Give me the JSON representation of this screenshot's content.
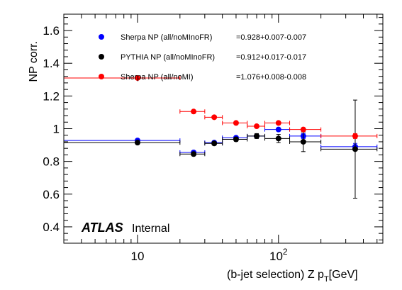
{
  "chart_data": {
    "type": "scatter",
    "xlabel": "(b-jet selection) Z p",
    "xlabel_sub": "T",
    "xlabel_unit": "[GeV]",
    "ylabel": "NP corr.",
    "xscale": "log",
    "xlim": [
      3,
      550
    ],
    "ylim": [
      0.3,
      1.7
    ],
    "yticks": [
      "0.4",
      "0.6",
      "0.8",
      "1",
      "1.2",
      "1.4",
      "1.6"
    ],
    "xtick_labels": [
      {
        "value": 10,
        "base": "10",
        "exp": ""
      },
      {
        "value": 100,
        "base": "10",
        "exp": "2"
      }
    ],
    "grid": false,
    "legend_position": "top-left",
    "series": [
      {
        "name": "Sherpa NP (all/noMInoFR)",
        "value_label": "=0.928+0.007-0.007",
        "color": "#0000ff",
        "points": [
          {
            "x": 10,
            "xlo": 3,
            "xhi": 20,
            "y": 0.928,
            "err": 0.007
          },
          {
            "x": 25,
            "xlo": 20,
            "xhi": 30,
            "y": 0.855,
            "err": 0.008
          },
          {
            "x": 35,
            "xlo": 30,
            "xhi": 40,
            "y": 0.915,
            "err": 0.008
          },
          {
            "x": 50,
            "xlo": 40,
            "xhi": 60,
            "y": 0.945,
            "err": 0.008
          },
          {
            "x": 70,
            "xlo": 60,
            "xhi": 80,
            "y": 0.955,
            "err": 0.01
          },
          {
            "x": 100,
            "xlo": 80,
            "xhi": 120,
            "y": 0.995,
            "err": 0.01
          },
          {
            "x": 150,
            "xlo": 120,
            "xhi": 200,
            "y": 0.955,
            "err": 0.015
          },
          {
            "x": 350,
            "xlo": 200,
            "xhi": 500,
            "y": 0.89,
            "err": 0.02
          }
        ]
      },
      {
        "name": "PYTHIA NP (all/noMInoFR)",
        "value_label": "=0.912+0.017-0.017",
        "color": "#000000",
        "points": [
          {
            "x": 10,
            "xlo": 3,
            "xhi": 20,
            "y": 0.915,
            "err": 0.01
          },
          {
            "x": 25,
            "xlo": 20,
            "xhi": 30,
            "y": 0.845,
            "err": 0.01
          },
          {
            "x": 35,
            "xlo": 30,
            "xhi": 40,
            "y": 0.91,
            "err": 0.01
          },
          {
            "x": 50,
            "xlo": 40,
            "xhi": 60,
            "y": 0.935,
            "err": 0.012
          },
          {
            "x": 70,
            "xlo": 60,
            "xhi": 80,
            "y": 0.955,
            "err": 0.015
          },
          {
            "x": 100,
            "xlo": 80,
            "xhi": 120,
            "y": 0.94,
            "err": 0.025
          },
          {
            "x": 150,
            "xlo": 120,
            "xhi": 200,
            "y": 0.92,
            "err": 0.06
          },
          {
            "x": 350,
            "xlo": 200,
            "xhi": 500,
            "y": 0.875,
            "err": 0.3
          }
        ]
      },
      {
        "name": "Sherpa NP (all/noMI)",
        "value_label": "=1.076+0.008-0.008",
        "color": "#ff0000",
        "points": [
          {
            "x": 10,
            "xlo": 3,
            "xhi": 20,
            "y": 1.31,
            "err": 0.005
          },
          {
            "x": 25,
            "xlo": 20,
            "xhi": 30,
            "y": 1.105,
            "err": 0.006
          },
          {
            "x": 35,
            "xlo": 30,
            "xhi": 40,
            "y": 1.07,
            "err": 0.006
          },
          {
            "x": 50,
            "xlo": 40,
            "xhi": 60,
            "y": 1.035,
            "err": 0.006
          },
          {
            "x": 70,
            "xlo": 60,
            "xhi": 80,
            "y": 1.015,
            "err": 0.008
          },
          {
            "x": 100,
            "xlo": 80,
            "xhi": 120,
            "y": 1.035,
            "err": 0.008
          },
          {
            "x": 150,
            "xlo": 120,
            "xhi": 200,
            "y": 0.995,
            "err": 0.01
          },
          {
            "x": 350,
            "xlo": 200,
            "xhi": 500,
            "y": 0.955,
            "err": 0.015
          }
        ]
      }
    ]
  },
  "labels": {
    "atlas": "ATLAS",
    "internal": "Internal"
  }
}
